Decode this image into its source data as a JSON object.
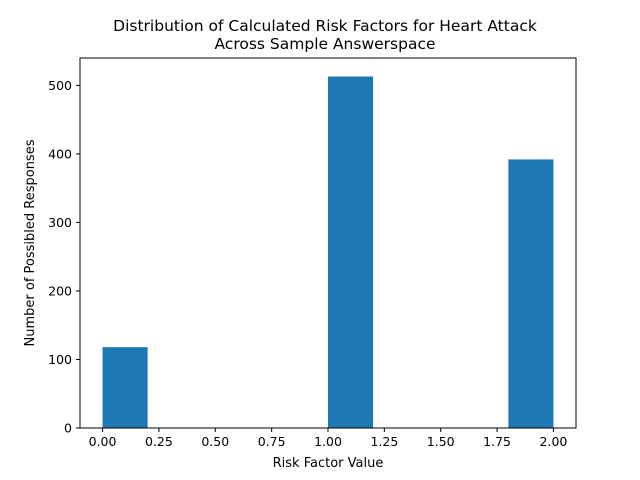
{
  "chart_data": {
    "type": "bar",
    "title": "Distribution of Calculated Risk Factors for Heart Attack",
    "subtitle": "Across Sample Answerspace",
    "xlabel": "Risk Factor Value",
    "ylabel": "Number of Possibled Responses",
    "xlim": [
      -0.1,
      2.1
    ],
    "ylim": [
      0,
      540
    ],
    "x_ticks": [
      0.0,
      0.25,
      0.5,
      0.75,
      1.0,
      1.25,
      1.5,
      1.75,
      2.0
    ],
    "x_tick_labels": [
      "0.00",
      "0.25",
      "0.50",
      "0.75",
      "1.00",
      "1.25",
      "1.50",
      "1.75",
      "2.00"
    ],
    "y_ticks": [
      0,
      100,
      200,
      300,
      400,
      500
    ],
    "y_tick_labels": [
      "0",
      "100",
      "200",
      "300",
      "400",
      "500"
    ],
    "bins": [
      {
        "x0": 0.0,
        "x1": 0.2,
        "value": 118
      },
      {
        "x0": 1.0,
        "x1": 1.2,
        "value": 513
      },
      {
        "x0": 1.8,
        "x1": 2.0,
        "value": 392
      }
    ],
    "grid": false,
    "bar_color": "#1f77b4"
  }
}
